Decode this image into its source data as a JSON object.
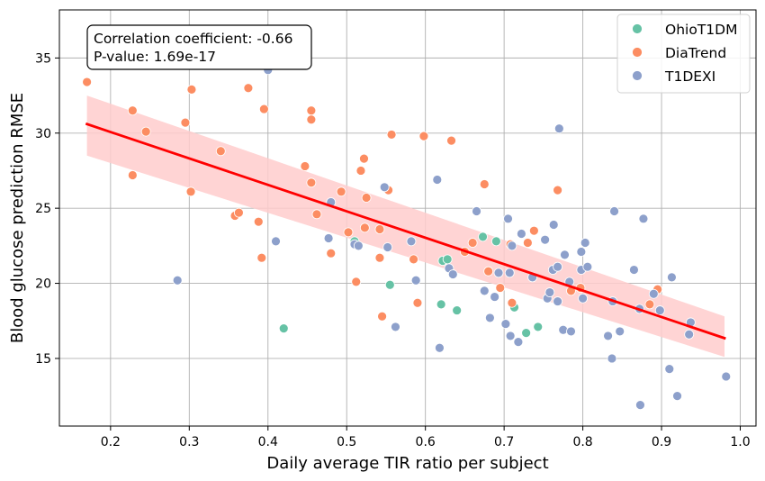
{
  "chart_data": {
    "type": "scatter",
    "title": "",
    "xlabel": "Daily average TIR ratio per subject",
    "ylabel": "Blood glucose prediction RMSE",
    "xlim": [
      0.135,
      1.02
    ],
    "ylim": [
      10.5,
      38.2
    ],
    "xticks": [
      0.2,
      0.3,
      0.4,
      0.5,
      0.6,
      0.7,
      0.8,
      0.9,
      1.0
    ],
    "xtick_labels": [
      "0.2",
      "0.3",
      "0.4",
      "0.5",
      "0.6",
      "0.7",
      "0.8",
      "0.9",
      "1.0"
    ],
    "yticks": [
      15,
      20,
      25,
      30,
      35
    ],
    "ytick_labels": [
      "15",
      "20",
      "25",
      "30",
      "35"
    ],
    "grid": true,
    "legend_position": "top-right",
    "annotation": {
      "line1": "Correlation coefficient: -0.66",
      "line2": "P-value: 1.69e-17",
      "position": "top-left"
    },
    "regression": {
      "x": [
        0.17,
        0.98
      ],
      "y": [
        30.6,
        16.35
      ],
      "ci_start": [
        28.5,
        32.5
      ],
      "ci_end": [
        15.1,
        17.8
      ],
      "color": "#ff0000",
      "band_color": "#ffcccc"
    },
    "series": [
      {
        "name": "OhioT1DM",
        "color": "#66c2a5",
        "points": [
          [
            0.42,
            17.0
          ],
          [
            0.51,
            22.8
          ],
          [
            0.555,
            19.9
          ],
          [
            0.62,
            18.6
          ],
          [
            0.622,
            21.5
          ],
          [
            0.628,
            21.6
          ],
          [
            0.64,
            18.2
          ],
          [
            0.673,
            23.1
          ],
          [
            0.69,
            22.8
          ],
          [
            0.713,
            18.4
          ],
          [
            0.728,
            16.7
          ],
          [
            0.743,
            17.1
          ]
        ]
      },
      {
        "name": "DiaTrend",
        "color": "#fc8d62",
        "points": [
          [
            0.17,
            33.4
          ],
          [
            0.228,
            31.5
          ],
          [
            0.228,
            27.2
          ],
          [
            0.245,
            30.1
          ],
          [
            0.295,
            30.7
          ],
          [
            0.302,
            26.1
          ],
          [
            0.303,
            32.9
          ],
          [
            0.34,
            28.8
          ],
          [
            0.358,
            24.5
          ],
          [
            0.363,
            24.7
          ],
          [
            0.375,
            33.0
          ],
          [
            0.388,
            24.1
          ],
          [
            0.392,
            21.7
          ],
          [
            0.395,
            31.6
          ],
          [
            0.447,
            27.8
          ],
          [
            0.455,
            31.5
          ],
          [
            0.455,
            30.9
          ],
          [
            0.455,
            26.7
          ],
          [
            0.462,
            24.6
          ],
          [
            0.48,
            22.0
          ],
          [
            0.493,
            26.1
          ],
          [
            0.502,
            23.4
          ],
          [
            0.512,
            20.1
          ],
          [
            0.518,
            27.5
          ],
          [
            0.522,
            28.3
          ],
          [
            0.523,
            23.7
          ],
          [
            0.525,
            25.7
          ],
          [
            0.542,
            21.7
          ],
          [
            0.542,
            23.6
          ],
          [
            0.545,
            17.8
          ],
          [
            0.553,
            26.2
          ],
          [
            0.557,
            29.9
          ],
          [
            0.585,
            21.6
          ],
          [
            0.59,
            18.7
          ],
          [
            0.598,
            29.8
          ],
          [
            0.633,
            29.5
          ],
          [
            0.65,
            22.1
          ],
          [
            0.66,
            22.7
          ],
          [
            0.675,
            26.6
          ],
          [
            0.68,
            20.8
          ],
          [
            0.695,
            19.7
          ],
          [
            0.708,
            22.6
          ],
          [
            0.71,
            18.7
          ],
          [
            0.73,
            22.7
          ],
          [
            0.738,
            23.5
          ],
          [
            0.768,
            26.2
          ],
          [
            0.785,
            19.5
          ],
          [
            0.797,
            19.7
          ],
          [
            0.84,
            24.8
          ],
          [
            0.885,
            18.6
          ],
          [
            0.895,
            19.6
          ]
        ]
      },
      {
        "name": "T1DEXI",
        "color": "#8da0cb",
        "points": [
          [
            0.285,
            20.2
          ],
          [
            0.4,
            34.2
          ],
          [
            0.41,
            22.8
          ],
          [
            0.477,
            23.0
          ],
          [
            0.48,
            25.4
          ],
          [
            0.51,
            22.6
          ],
          [
            0.515,
            22.5
          ],
          [
            0.548,
            26.4
          ],
          [
            0.552,
            22.4
          ],
          [
            0.562,
            17.1
          ],
          [
            0.582,
            22.8
          ],
          [
            0.588,
            20.2
          ],
          [
            0.615,
            26.9
          ],
          [
            0.618,
            15.7
          ],
          [
            0.63,
            21.0
          ],
          [
            0.635,
            20.6
          ],
          [
            0.665,
            24.8
          ],
          [
            0.675,
            19.5
          ],
          [
            0.682,
            17.7
          ],
          [
            0.688,
            19.1
          ],
          [
            0.693,
            20.7
          ],
          [
            0.702,
            17.3
          ],
          [
            0.705,
            24.3
          ],
          [
            0.707,
            20.7
          ],
          [
            0.708,
            16.5
          ],
          [
            0.71,
            22.5
          ],
          [
            0.718,
            16.1
          ],
          [
            0.722,
            23.3
          ],
          [
            0.736,
            20.4
          ],
          [
            0.752,
            22.9
          ],
          [
            0.755,
            19.0
          ],
          [
            0.758,
            19.4
          ],
          [
            0.762,
            20.9
          ],
          [
            0.763,
            23.9
          ],
          [
            0.768,
            18.8
          ],
          [
            0.768,
            21.1
          ],
          [
            0.77,
            30.3
          ],
          [
            0.775,
            16.9
          ],
          [
            0.777,
            21.9
          ],
          [
            0.783,
            20.1
          ],
          [
            0.785,
            16.8
          ],
          [
            0.798,
            22.1
          ],
          [
            0.798,
            20.9
          ],
          [
            0.8,
            19.0
          ],
          [
            0.803,
            22.7
          ],
          [
            0.806,
            21.1
          ],
          [
            0.832,
            16.5
          ],
          [
            0.837,
            15.0
          ],
          [
            0.838,
            18.8
          ],
          [
            0.84,
            24.8
          ],
          [
            0.847,
            16.8
          ],
          [
            0.865,
            20.9
          ],
          [
            0.872,
            18.3
          ],
          [
            0.873,
            11.9
          ],
          [
            0.877,
            24.3
          ],
          [
            0.89,
            19.3
          ],
          [
            0.898,
            18.2
          ],
          [
            0.91,
            14.3
          ],
          [
            0.913,
            20.4
          ],
          [
            0.92,
            12.5
          ],
          [
            0.935,
            16.6
          ],
          [
            0.937,
            17.4
          ],
          [
            0.982,
            13.8
          ]
        ]
      }
    ]
  }
}
